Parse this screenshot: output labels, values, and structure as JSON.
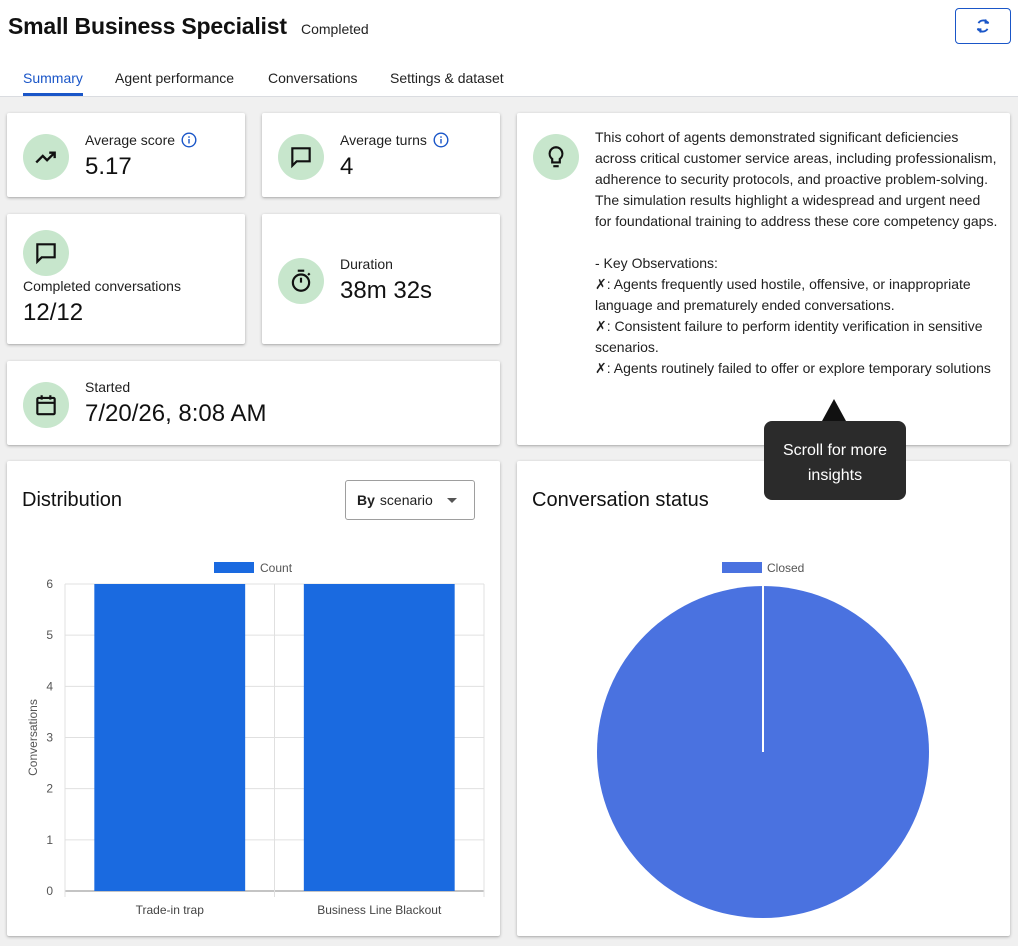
{
  "header": {
    "title": "Small Business Specialist",
    "status": "Completed",
    "refresh_icon": "refresh-icon"
  },
  "tabs": [
    {
      "label": "Summary",
      "active": true
    },
    {
      "label": "Agent performance",
      "active": false
    },
    {
      "label": "Conversations",
      "active": false
    },
    {
      "label": "Settings & dataset",
      "active": false
    }
  ],
  "stats": {
    "average_score": {
      "label": "Average score",
      "value": "5.17",
      "icon": "trending-up-icon"
    },
    "average_turns": {
      "label": "Average turns",
      "value": "4",
      "icon": "chat-bubble-icon"
    },
    "completed_conversations": {
      "label": "Completed conversations",
      "value": "12/12",
      "icon": "chat-bubble-icon"
    },
    "duration": {
      "label": "Duration",
      "value": "38m 32s",
      "icon": "timer-icon"
    },
    "started": {
      "label": "Started",
      "value": "7/20/26, 8:08 AM",
      "icon": "calendar-icon"
    }
  },
  "insights": {
    "icon": "lightbulb-icon",
    "paragraph": "This cohort of agents demonstrated significant deficiencies across critical customer service areas, including professionalism, adherence to security protocols, and proactive problem-solving. The simulation results highlight a widespread and urgent need for foundational training to address these core competency gaps.",
    "heading": "- Key Observations:",
    "observations": [
      "✗: Agents frequently used hostile, offensive, or inappropriate language and prematurely ended conversations.",
      "✗: Consistent failure to perform identity verification in sensitive scenarios.",
      "✗: Agents routinely failed to offer or explore temporary solutions"
    ],
    "tooltip": "Scroll for more insights"
  },
  "distribution": {
    "title": "Distribution",
    "dropdown": {
      "prefix": "By",
      "value": "scenario"
    }
  },
  "conversation_status": {
    "title": "Conversation status"
  },
  "colors": {
    "accent": "#1a56c8",
    "bar": "#1a6ae0",
    "pie": "#4a72e0",
    "icon_bg": "#c7e6cc"
  },
  "chart_data": [
    {
      "type": "bar",
      "categories": [
        "Trade-in trap",
        "Business Line Blackout"
      ],
      "series": [
        {
          "name": "Count",
          "values": [
            6,
            6
          ]
        }
      ],
      "ylabel": "Conversations",
      "xlabel": "",
      "ylim": [
        0,
        6
      ],
      "yticks": [
        0,
        1,
        2,
        3,
        4,
        5,
        6
      ],
      "legend": "top",
      "grid": true
    },
    {
      "type": "pie",
      "labels": [
        "Closed"
      ],
      "values": [
        12
      ],
      "legend": "top"
    }
  ]
}
